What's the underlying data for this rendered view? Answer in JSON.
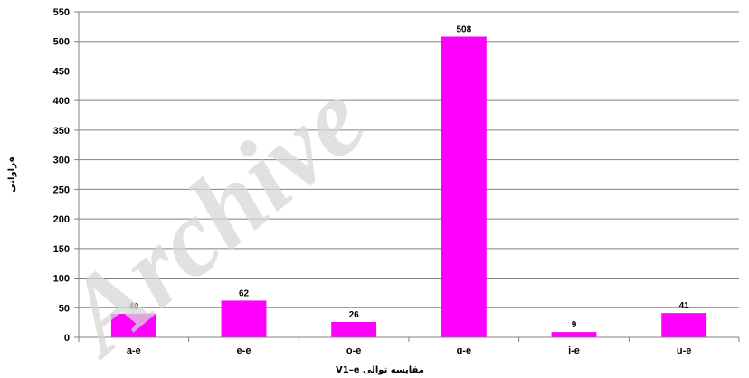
{
  "watermark": "Archive",
  "chart_data": {
    "type": "bar",
    "categories": [
      "a-e",
      "e-e",
      "o-e",
      "ɑ-e",
      "i-e",
      "u-e"
    ],
    "values": [
      40,
      62,
      26,
      508,
      9,
      41
    ],
    "data_labels": [
      "40",
      "62",
      "26",
      "508",
      "9",
      "41"
    ],
    "xlabel": "مقایسه توالی V1–e",
    "ylabel": "فراوانی",
    "ylim": [
      0,
      550
    ],
    "yticks": [
      0,
      50,
      100,
      150,
      200,
      250,
      300,
      350,
      400,
      450,
      500,
      550
    ],
    "bar_color": "#ff00ff",
    "grid": true,
    "legend": "none"
  }
}
